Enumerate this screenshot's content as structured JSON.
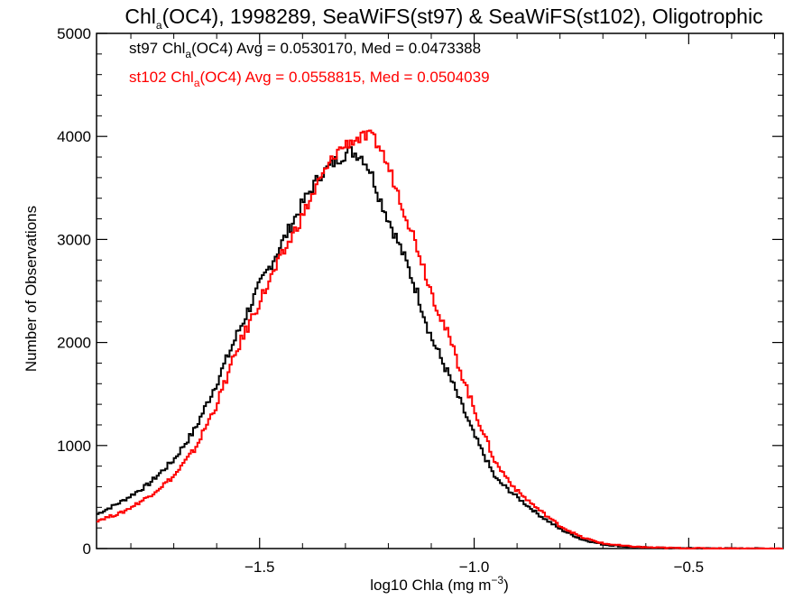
{
  "chart_data": {
    "type": "line",
    "title_parts": [
      "Chl",
      "a",
      "(OC4), 1998289, SeaWiFS(st97) & SeaWiFS(st102), Oligotrophic"
    ],
    "xlabel_parts": [
      "log10 Chla (mg m",
      "−3",
      ")"
    ],
    "ylabel": "Number of Observations",
    "xlim": [
      -1.88,
      -0.28
    ],
    "ylim": [
      0,
      5000
    ],
    "x_ticks": [
      -1.5,
      -1.0,
      -0.5
    ],
    "x_tick_labels": [
      "−1.5",
      "−1.0",
      "−0.5"
    ],
    "y_ticks": [
      0,
      1000,
      2000,
      3000,
      4000,
      5000
    ],
    "y_tick_labels": [
      "0",
      "1000",
      "2000",
      "3000",
      "4000",
      "5000"
    ],
    "grid": false,
    "legend_position": "top-left",
    "series": [
      {
        "name": "st97",
        "color": "#000000",
        "legend_parts": [
          "st97 Chl",
          "a",
          "(OC4) Avg = 0.0530170, Med = 0.0473388"
        ],
        "x": [
          -1.88,
          -1.82,
          -1.76,
          -1.7,
          -1.65,
          -1.6,
          -1.55,
          -1.5,
          -1.45,
          -1.4,
          -1.36,
          -1.32,
          -1.29,
          -1.26,
          -1.24,
          -1.22,
          -1.19,
          -1.16,
          -1.13,
          -1.1,
          -1.05,
          -1.0,
          -0.95,
          -0.9,
          -0.85,
          -0.8,
          -0.75,
          -0.7,
          -0.65,
          -0.6,
          -0.55,
          -0.5,
          -0.4,
          -0.28
        ],
        "y": [
          330,
          460,
          620,
          860,
          1160,
          1610,
          2100,
          2550,
          2950,
          3350,
          3620,
          3770,
          3860,
          3800,
          3650,
          3400,
          3100,
          2800,
          2450,
          2050,
          1600,
          1100,
          680,
          500,
          330,
          190,
          90,
          40,
          20,
          10,
          5,
          3,
          1,
          0
        ]
      },
      {
        "name": "st102",
        "color": "#ff0000",
        "legend_parts": [
          "st102 Chl",
          "a",
          "(OC4) Avg = 0.0558815, Med = 0.0504039"
        ],
        "x": [
          -1.88,
          -1.82,
          -1.76,
          -1.7,
          -1.65,
          -1.6,
          -1.55,
          -1.5,
          -1.45,
          -1.4,
          -1.36,
          -1.32,
          -1.29,
          -1.26,
          -1.24,
          -1.22,
          -1.19,
          -1.16,
          -1.13,
          -1.1,
          -1.05,
          -1.0,
          -0.95,
          -0.9,
          -0.85,
          -0.8,
          -0.75,
          -0.7,
          -0.65,
          -0.6,
          -0.55,
          -0.5,
          -0.4,
          -0.28
        ],
        "y": [
          270,
          350,
          500,
          700,
          970,
          1400,
          1950,
          2400,
          2820,
          3230,
          3570,
          3850,
          3950,
          3990,
          4000,
          3900,
          3600,
          3250,
          2900,
          2500,
          1950,
          1350,
          830,
          560,
          380,
          220,
          110,
          50,
          25,
          12,
          6,
          3,
          1,
          0
        ]
      }
    ]
  }
}
